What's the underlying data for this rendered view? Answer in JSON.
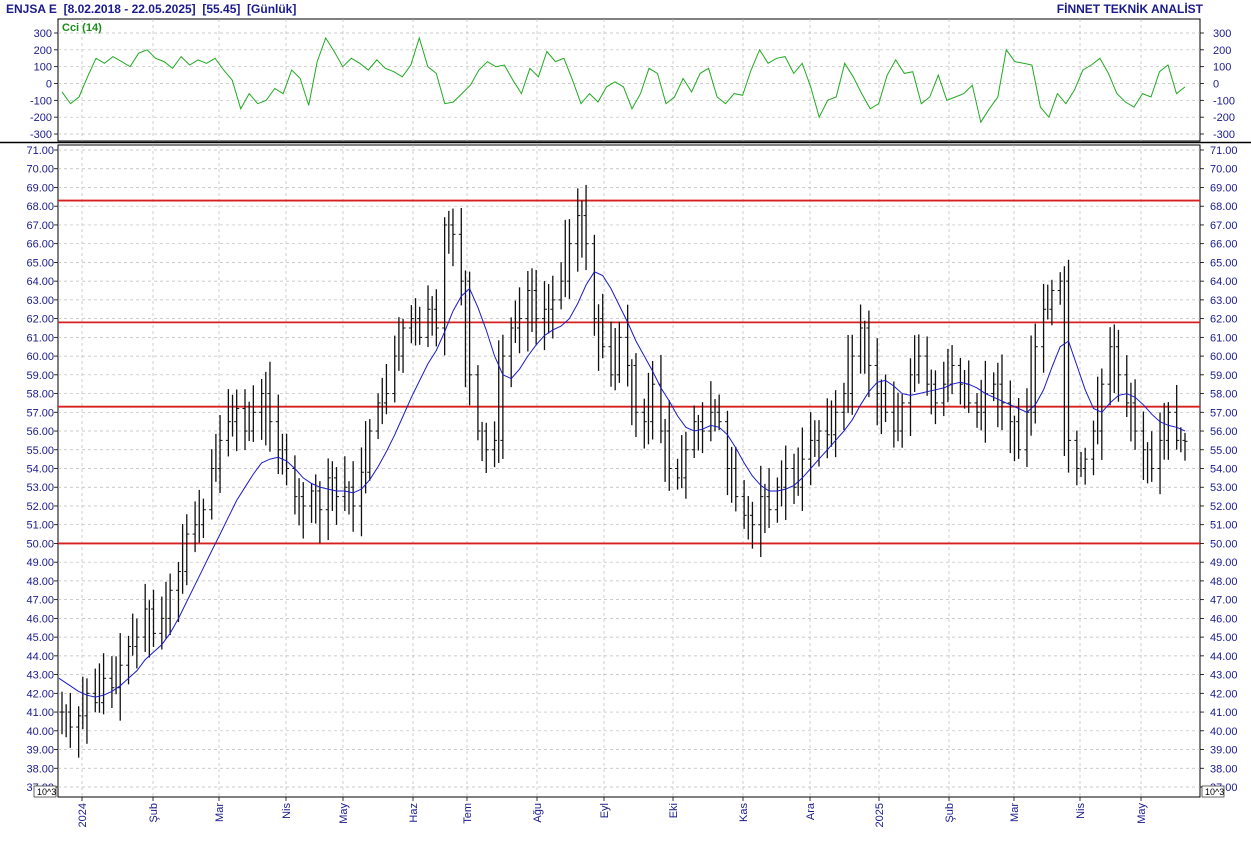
{
  "header": {
    "title_left": "ENJSA E  [8.02.2018 - 22.05.2025]  [55.45]  [Günlük]",
    "title_right": "FİNNET TEKNİK ANALİST"
  },
  "colors": {
    "text": "#1a1a8c",
    "cci_line": "#22aa22",
    "bars": "#111111",
    "moving_average": "#1a1acc",
    "support_resistance": "#d62020",
    "grid": "#bbbbbb"
  },
  "chart_data": [
    {
      "type": "line",
      "name": "Cci (14)",
      "yticks": [
        300,
        200,
        100,
        0,
        -100,
        -200,
        -300
      ],
      "ylim": [
        -330,
        330
      ],
      "grid": true,
      "series": [
        {
          "name": "Cci (14)",
          "values": [
            -50,
            -120,
            -80,
            40,
            150,
            120,
            160,
            130,
            100,
            180,
            200,
            150,
            130,
            90,
            160,
            110,
            140,
            120,
            150,
            80,
            20,
            -150,
            -60,
            -120,
            -100,
            -30,
            -60,
            80,
            30,
            -130,
            130,
            270,
            190,
            100,
            150,
            120,
            80,
            140,
            90,
            70,
            40,
            110,
            270,
            100,
            60,
            -120,
            -110,
            -60,
            -10,
            80,
            130,
            100,
            110,
            20,
            -60,
            90,
            40,
            190,
            130,
            150,
            20,
            -120,
            -60,
            -110,
            -20,
            10,
            -20,
            -150,
            -60,
            90,
            60,
            -120,
            -80,
            30,
            -50,
            60,
            90,
            -80,
            -120,
            -60,
            -70,
            80,
            200,
            120,
            150,
            160,
            60,
            120,
            -20,
            -200,
            -100,
            -80,
            120,
            40,
            -60,
            -150,
            -120,
            50,
            140,
            60,
            70,
            -120,
            -80,
            50,
            -100,
            -80,
            -60,
            -10,
            -230,
            -150,
            -80,
            200,
            130,
            120,
            110,
            -140,
            -200,
            -60,
            -120,
            -40,
            80,
            110,
            150,
            60,
            -60,
            -110,
            -140,
            -60,
            -80,
            70,
            110,
            -60,
            -20
          ]
        }
      ]
    },
    {
      "type": "bar",
      "subtype": "ohlc",
      "yticks": [
        71.0,
        70.0,
        69.0,
        68.0,
        67.0,
        66.0,
        65.0,
        64.0,
        63.0,
        62.0,
        61.0,
        60.0,
        59.0,
        58.0,
        57.0,
        56.0,
        55.0,
        54.0,
        53.0,
        52.0,
        51.0,
        50.0,
        49.0,
        48.0,
        47.0,
        46.0,
        45.0,
        44.0,
        43.0,
        42.0,
        41.0,
        40.0,
        39.0,
        38.0,
        37.0
      ],
      "ylim": [
        37.0,
        71.0
      ],
      "unit_label": "10^3",
      "x_labels": [
        "2024",
        "Şub",
        "Mar",
        "Nis",
        "May",
        "Haz",
        "Tem",
        "Ağu",
        "Eyl",
        "Eki",
        "Kas",
        "Ara",
        "2025",
        "Şub",
        "Mar",
        "Nis",
        "May"
      ],
      "grid": true,
      "horizontal_lines": [
        68.3,
        61.8,
        57.3,
        50.0
      ],
      "closes": [
        41.0,
        40.2,
        40.8,
        42.0,
        41.5,
        42.8,
        42.3,
        43.5,
        44.5,
        45.0,
        46.5,
        45.2,
        46.0,
        47.5,
        48.5,
        50.5,
        51.0,
        51.8,
        54.0,
        55.5,
        56.5,
        57.2,
        56.0,
        57.0,
        58.0,
        56.5,
        55.0,
        54.0,
        52.5,
        52.0,
        52.8,
        51.8,
        53.5,
        52.5,
        53.0,
        52.0,
        53.8,
        56.0,
        57.5,
        58.0,
        60.0,
        61.5,
        62.0,
        61.0,
        62.5,
        61.5,
        67.0,
        66.5,
        64.0,
        59.0,
        56.0,
        55.0,
        55.5,
        60.0,
        61.5,
        62.0,
        63.5,
        62.0,
        62.5,
        63.0,
        64.0,
        66.0,
        67.5,
        66.0,
        62.0,
        60.5,
        59.0,
        61.0,
        59.5,
        57.0,
        56.5,
        58.5,
        56.0,
        54.0,
        53.5,
        55.0,
        56.5,
        56.0,
        57.0,
        56.5,
        54.0,
        52.5,
        51.5,
        51.0,
        52.5,
        51.8,
        53.0,
        54.0,
        53.0,
        54.5,
        55.5,
        56.0,
        55.8,
        57.0,
        58.0,
        60.0,
        61.5,
        59.5,
        58.0,
        57.0,
        56.0,
        57.5,
        59.0,
        60.0,
        58.5,
        57.5,
        58.5,
        59.5,
        58.5,
        57.5,
        57.0,
        58.0,
        58.5,
        57.5,
        56.5,
        55.0,
        57.0,
        60.5,
        62.5,
        63.5,
        64.0,
        55.5,
        54.0,
        54.5,
        56.0,
        58.5,
        60.5,
        59.0,
        57.5,
        56.0,
        55.0,
        54.0,
        55.5,
        57.0,
        55.5,
        55.45
      ],
      "moving_average": [
        42.8,
        42.4,
        42.1,
        41.9,
        41.8,
        41.9,
        42.1,
        42.4,
        42.8,
        43.2,
        43.8,
        44.2,
        44.6,
        45.2,
        46.0,
        46.9,
        47.8,
        48.7,
        49.6,
        50.5,
        51.4,
        52.3,
        53.0,
        53.7,
        54.3,
        54.5,
        54.6,
        54.4,
        54.0,
        53.5,
        53.2,
        53.0,
        52.9,
        52.8,
        52.8,
        52.7,
        52.9,
        53.4,
        54.1,
        54.9,
        55.8,
        56.8,
        57.8,
        58.7,
        59.6,
        60.3,
        61.3,
        62.4,
        63.2,
        63.6,
        62.6,
        61.4,
        60.0,
        59.0,
        58.8,
        59.3,
        60.0,
        60.6,
        61.1,
        61.4,
        61.6,
        62.0,
        62.8,
        63.8,
        64.5,
        64.3,
        63.6,
        62.7,
        61.8,
        60.8,
        60.0,
        59.2,
        58.3,
        57.6,
        56.8,
        56.2,
        56.0,
        56.1,
        56.3,
        56.2,
        55.8,
        55.1,
        54.3,
        53.6,
        53.1,
        52.8,
        52.8,
        52.9,
        53.1,
        53.5,
        54.0,
        54.5,
        55.0,
        55.5,
        56.0,
        56.6,
        57.4,
        58.1,
        58.6,
        58.7,
        58.4,
        58.0,
        57.9,
        58.0,
        58.1,
        58.2,
        58.3,
        58.5,
        58.6,
        58.5,
        58.3,
        58.0,
        57.8,
        57.6,
        57.4,
        57.2,
        57.0,
        57.4,
        58.2,
        59.4,
        60.5,
        60.8,
        59.5,
        58.2,
        57.2,
        57.0,
        57.5,
        57.9,
        58.0,
        57.8,
        57.4,
        56.9,
        56.5,
        56.3,
        56.2,
        56.0
      ]
    }
  ]
}
